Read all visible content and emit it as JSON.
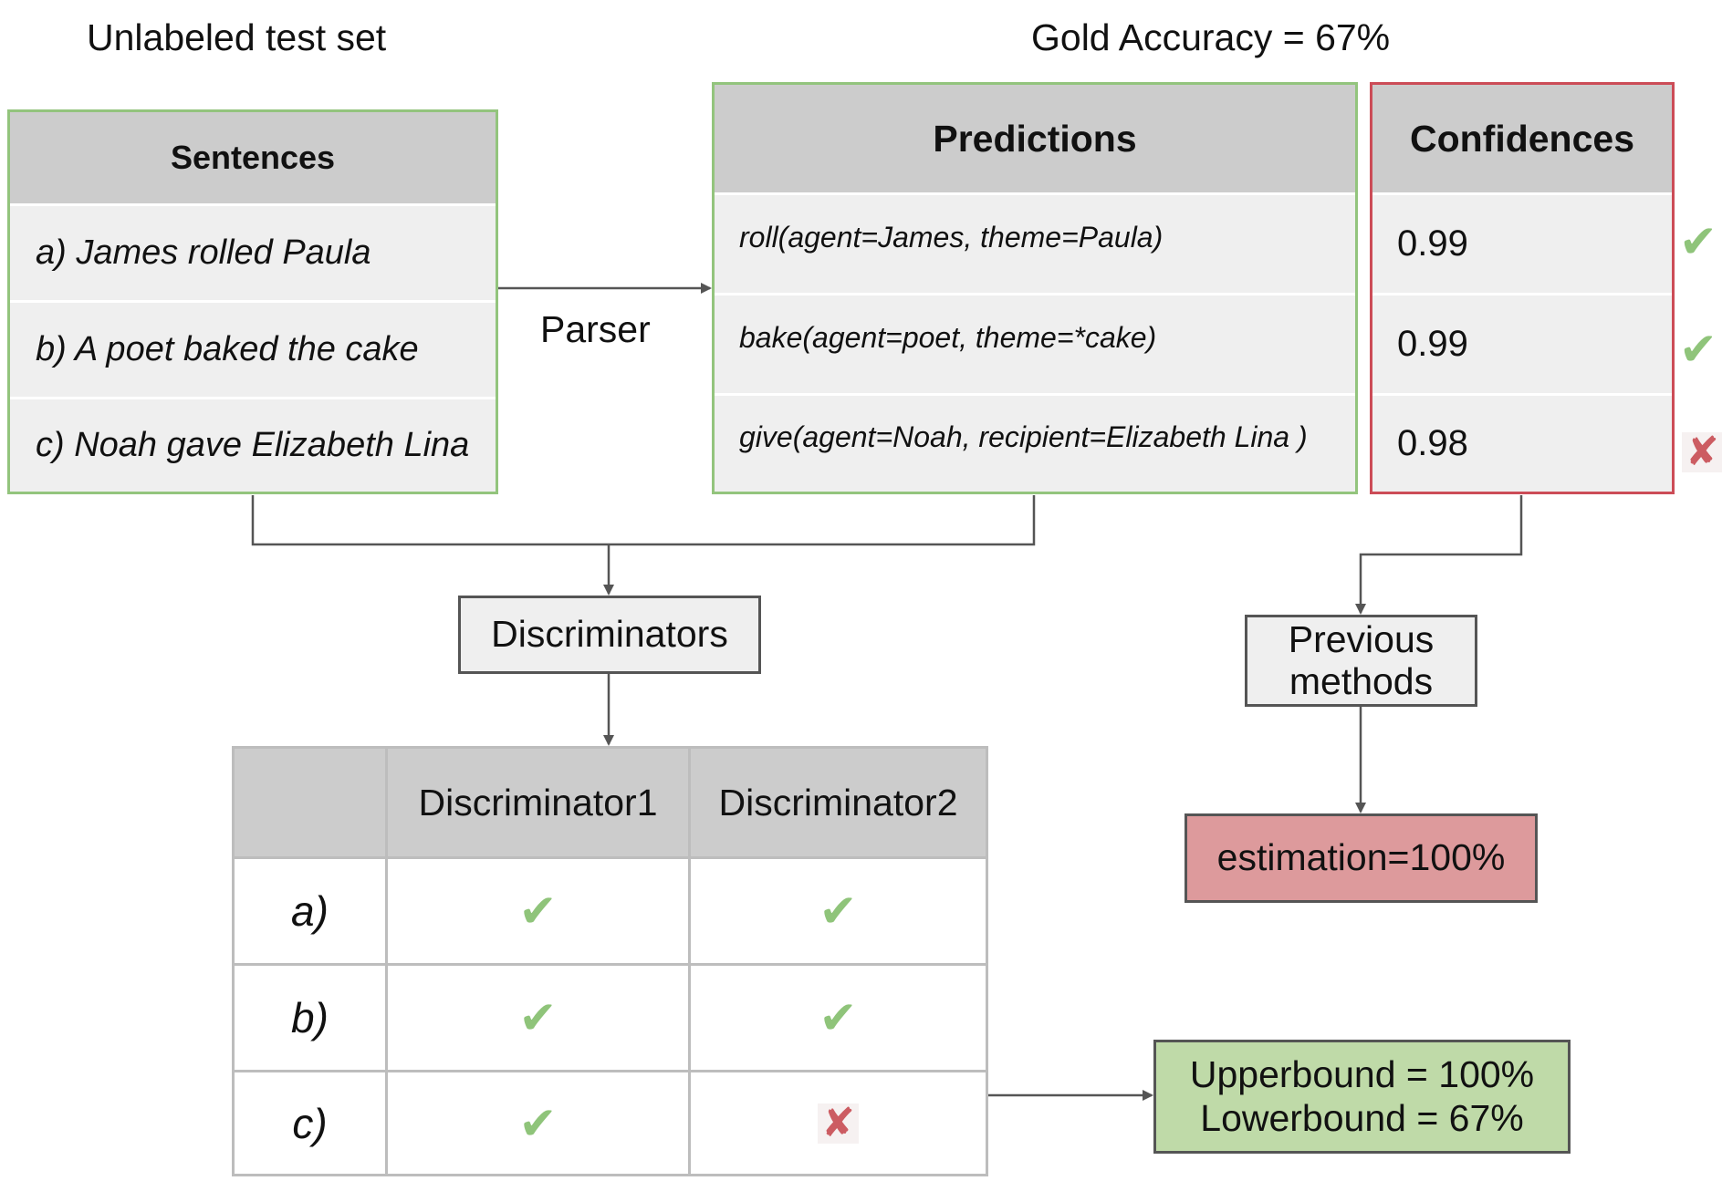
{
  "captions": {
    "test_set": "Unlabeled test set",
    "gold_accuracy": "Gold Accuracy = 67%",
    "parser": "Parser"
  },
  "sentences": {
    "header": "Sentences",
    "items": [
      "a) James rolled Paula",
      "b) A poet baked the cake",
      "c) Noah gave Elizabeth Lina"
    ]
  },
  "predictions": {
    "header": "Predictions",
    "items": [
      "roll(agent=James, theme=Paula)",
      "bake(agent=poet, theme=*cake)",
      "give(agent=Noah, recipient=Elizabeth Lina )"
    ]
  },
  "confidences": {
    "header": "Confidences",
    "items": [
      {
        "value": "0.99",
        "mark": "check"
      },
      {
        "value": "0.99",
        "mark": "check"
      },
      {
        "value": "0.98",
        "mark": "cross"
      }
    ]
  },
  "boxes": {
    "discriminators": "Discriminators",
    "previous_methods_line1": "Previous",
    "previous_methods_line2": "methods",
    "estimation": "estimation=100%",
    "upperbound": "Upperbound = 100%",
    "lowerbound": "Lowerbound = 67%"
  },
  "disc_table": {
    "columns": [
      "Discriminator1",
      "Discriminator2"
    ],
    "rows": [
      {
        "label": "a)",
        "marks": [
          "check",
          "check"
        ]
      },
      {
        "label": "b)",
        "marks": [
          "check",
          "check"
        ]
      },
      {
        "label": "c)",
        "marks": [
          "check",
          "cross"
        ]
      }
    ]
  },
  "glyphs": {
    "check": "✔",
    "cross": "✘"
  },
  "colors": {
    "green_border": "#93c47d",
    "red_border": "#cc4c57",
    "check": "#8fc47a",
    "cross": "#cc5c62",
    "estimation_fill": "#dd9a9c",
    "bound_fill": "#bfdaa8",
    "header_fill": "#cccccc",
    "row_fill": "#efefef"
  }
}
